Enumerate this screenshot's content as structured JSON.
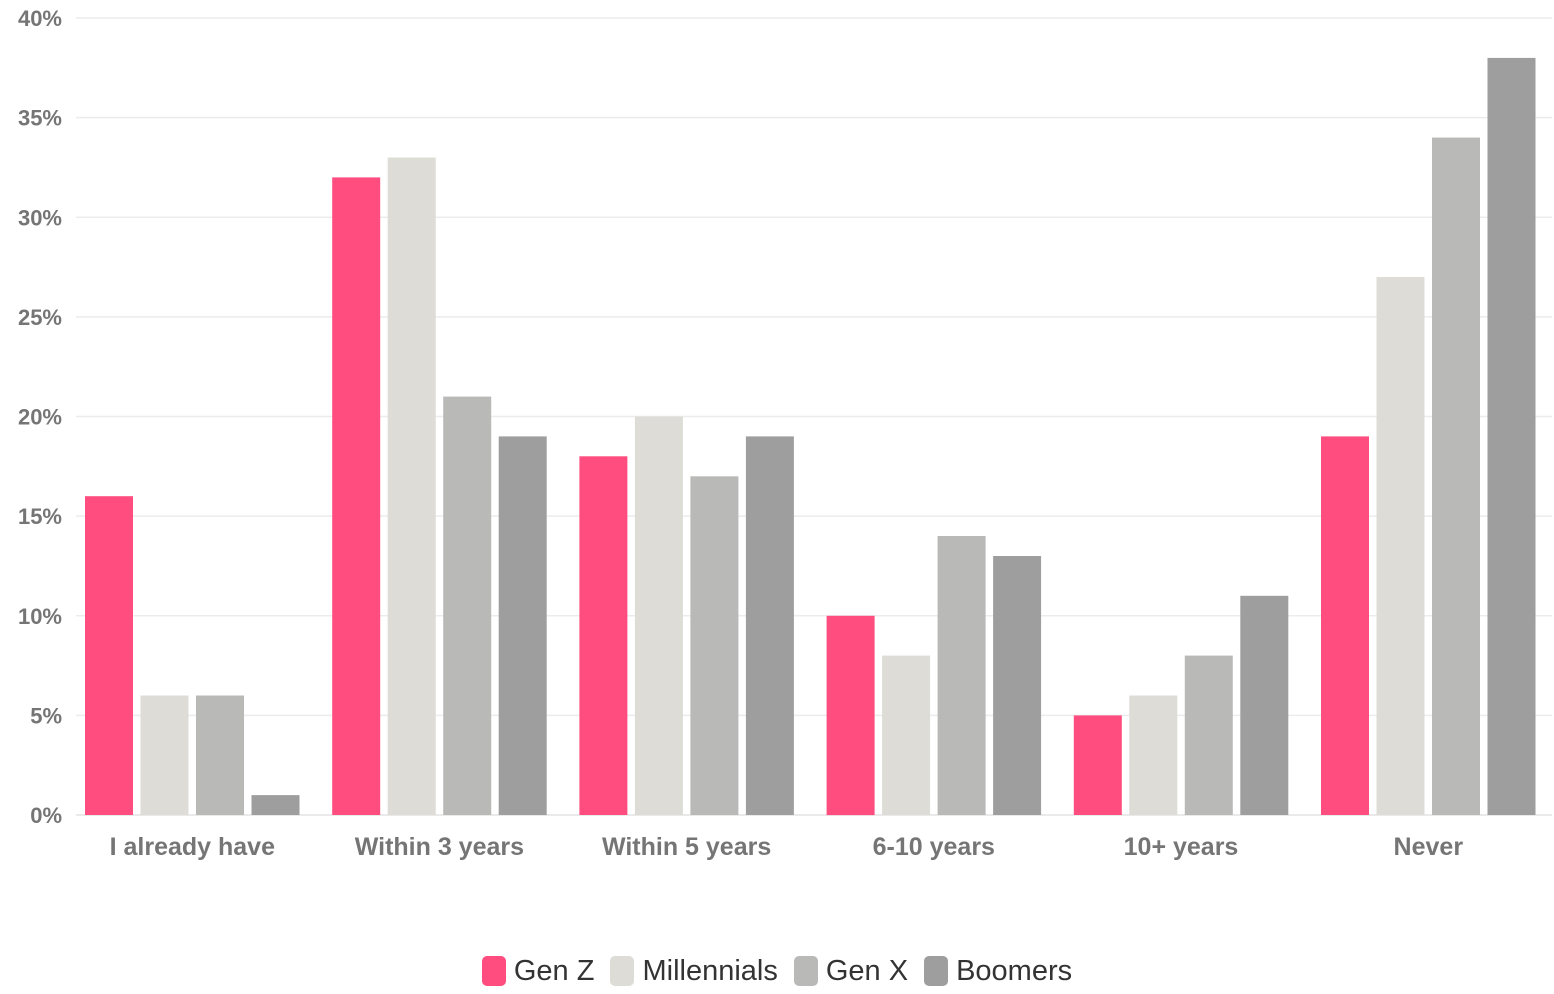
{
  "chart_data": {
    "type": "bar",
    "categories": [
      "I already have",
      "Within 3 years",
      "Within 5 years",
      "6-10 years",
      "10+ years",
      "Never"
    ],
    "series": [
      {
        "name": "Gen Z",
        "color": "#ff4d80",
        "values": [
          16,
          32,
          18,
          10,
          5,
          19
        ]
      },
      {
        "name": "Millennials",
        "color": "#dddcd7",
        "values": [
          6,
          33,
          20,
          8,
          6,
          27
        ]
      },
      {
        "name": "Gen X",
        "color": "#b9b9b7",
        "values": [
          6,
          21,
          17,
          14,
          8,
          34
        ]
      },
      {
        "name": "Boomers",
        "color": "#9e9e9e",
        "values": [
          1,
          19,
          19,
          13,
          11,
          38
        ]
      }
    ],
    "ylim": [
      0,
      40
    ],
    "yticks": [
      0,
      5,
      10,
      15,
      20,
      25,
      30,
      35,
      40
    ],
    "ytick_format": "%",
    "title": "",
    "xlabel": "",
    "ylabel": "",
    "grid": true,
    "legend_position": "bottom-center"
  }
}
